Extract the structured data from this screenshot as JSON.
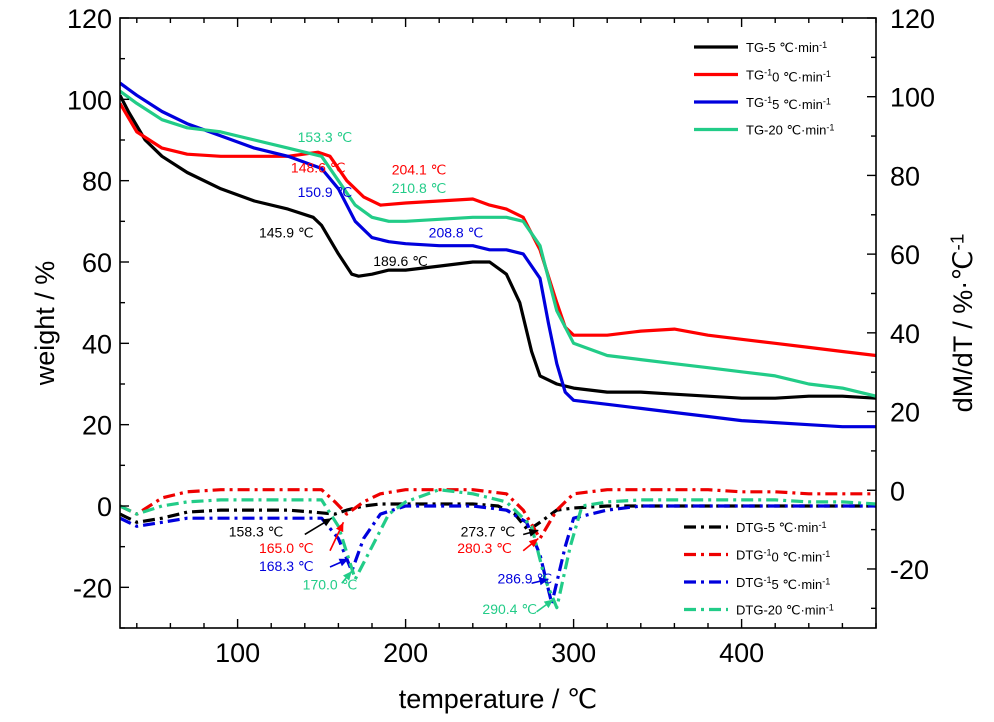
{
  "chart_data": {
    "type": "line",
    "xlabel": "temperature / ℃",
    "ylabel_left": "weight / %",
    "ylabel_right": "dM/dT / %·℃-1",
    "xlim": [
      30,
      480
    ],
    "ylim_left": [
      -30,
      120
    ],
    "ylim_right": [
      -35,
      120
    ],
    "x_ticks": [
      100,
      200,
      300,
      400
    ],
    "y_ticks_left": [
      -20,
      0,
      20,
      40,
      60,
      80,
      100,
      120
    ],
    "y_ticks_right": [
      -20,
      0,
      20,
      40,
      60,
      80,
      100,
      120
    ],
    "grid": false,
    "legend_tg_position": "top-right",
    "legend_dtg_position": "bottom-right",
    "series": [
      {
        "name": "TG-5 ℃·min-1",
        "axis": "left",
        "style": "solid",
        "color": "#000000",
        "x": [
          30,
          35,
          45,
          55,
          70,
          90,
          110,
          130,
          145,
          150,
          160,
          168,
          172,
          180,
          190,
          200,
          220,
          240,
          250,
          260,
          268,
          275,
          280,
          290,
          300,
          320,
          340,
          360,
          380,
          400,
          420,
          440,
          460,
          480
        ],
        "y": [
          101,
          97,
          90,
          86,
          82,
          78,
          75,
          73,
          71,
          69,
          62,
          57,
          56.5,
          57,
          58,
          58,
          59,
          60,
          60,
          57,
          50,
          38,
          32,
          30,
          29,
          28,
          28,
          27.5,
          27,
          26.5,
          26.5,
          27,
          27,
          26.5
        ]
      },
      {
        "name": "TG-10 ℃·min-1",
        "axis": "left",
        "style": "solid",
        "color": "#ff0000",
        "x": [
          30,
          40,
          55,
          70,
          90,
          110,
          130,
          148,
          155,
          165,
          175,
          185,
          200,
          220,
          240,
          250,
          260,
          270,
          280,
          290,
          295,
          300,
          320,
          340,
          360,
          380,
          400,
          420,
          440,
          460,
          480
        ],
        "y": [
          99,
          92,
          88,
          86.5,
          86,
          86,
          86,
          87,
          86,
          80,
          76,
          74,
          74.5,
          75,
          75.5,
          74,
          73,
          71,
          63,
          50,
          44,
          42,
          42,
          43,
          43.5,
          42,
          41,
          40,
          39,
          38,
          37
        ]
      },
      {
        "name": "TG-15 ℃·min-1",
        "axis": "left",
        "style": "solid",
        "color": "#0000dd",
        "x": [
          30,
          40,
          55,
          70,
          90,
          110,
          130,
          150,
          160,
          170,
          180,
          190,
          200,
          220,
          240,
          250,
          260,
          270,
          280,
          285,
          290,
          295,
          300,
          320,
          340,
          360,
          380,
          400,
          420,
          440,
          460,
          480
        ],
        "y": [
          104,
          101,
          97,
          94,
          91,
          88,
          86,
          83,
          78,
          70,
          66,
          65,
          64.5,
          64,
          64,
          63,
          63,
          62,
          56,
          45,
          35,
          28,
          26,
          25,
          24,
          23,
          22,
          21,
          20.5,
          20,
          19.5,
          19.5
        ]
      },
      {
        "name": "TG-20 ℃·min-1",
        "axis": "left",
        "style": "solid",
        "color": "#22cc88",
        "x": [
          30,
          40,
          55,
          70,
          90,
          110,
          130,
          150,
          160,
          170,
          180,
          190,
          200,
          220,
          240,
          250,
          260,
          270,
          280,
          290,
          300,
          320,
          340,
          360,
          380,
          400,
          420,
          440,
          460,
          480
        ],
        "y": [
          102,
          99,
          95,
          93,
          92,
          90,
          88,
          86,
          80,
          74,
          71,
          70,
          70,
          70.5,
          71,
          71,
          71,
          70,
          64,
          48,
          40,
          37,
          36,
          35,
          34,
          33,
          32,
          30,
          29,
          27
        ]
      },
      {
        "name": "DTG-5 ℃·min-1",
        "axis": "left",
        "style": "dashdot",
        "color": "#000000",
        "x": [
          30,
          40,
          55,
          70,
          90,
          110,
          130,
          145,
          158,
          165,
          175,
          185,
          200,
          220,
          240,
          255,
          265,
          273,
          280,
          290,
          300,
          320,
          340,
          360,
          380,
          400,
          420,
          440,
          460,
          480
        ],
        "y": [
          -2,
          -4,
          -3,
          -1.5,
          -1,
          -1,
          -1,
          -1.5,
          -2,
          -1,
          0,
          0.5,
          0.5,
          0.5,
          0.5,
          0,
          -2,
          -6,
          -4,
          -1,
          -0.5,
          0,
          0,
          0,
          0,
          0,
          0,
          0,
          0,
          0
        ]
      },
      {
        "name": "DTG-10 ℃·min-1",
        "axis": "left",
        "style": "dashdot",
        "color": "#ee0000",
        "x": [
          30,
          40,
          55,
          70,
          90,
          110,
          130,
          150,
          158,
          165,
          175,
          185,
          200,
          220,
          240,
          260,
          270,
          280,
          290,
          300,
          320,
          340,
          360,
          380,
          400,
          420,
          440,
          460,
          480
        ],
        "y": [
          0,
          -2,
          2,
          3.5,
          4,
          4,
          4,
          4,
          1,
          -2,
          1,
          3,
          4,
          4,
          4,
          3,
          -1,
          -8,
          -1,
          3,
          4,
          4,
          4,
          4,
          3.5,
          3.5,
          3,
          3,
          3
        ]
      },
      {
        "name": "DTG-15 ℃·min-1",
        "axis": "left",
        "style": "dashdot",
        "color": "#0000dd",
        "x": [
          30,
          40,
          55,
          70,
          90,
          110,
          130,
          150,
          160,
          168,
          175,
          185,
          200,
          220,
          240,
          260,
          272,
          280,
          287,
          295,
          300,
          320,
          340,
          360,
          380,
          400,
          420,
          440,
          460,
          480
        ],
        "y": [
          -3,
          -5,
          -4,
          -3,
          -3,
          -3,
          -3,
          -3,
          -8,
          -16,
          -8,
          -2,
          0,
          0,
          0,
          -1,
          -4,
          -12,
          -24,
          -10,
          -3,
          -1,
          0,
          0,
          0,
          0,
          0,
          0,
          0,
          0
        ]
      },
      {
        "name": "DTG-20 ℃·min-1",
        "axis": "left",
        "style": "dashdot",
        "color": "#22cc88",
        "x": [
          30,
          40,
          55,
          70,
          90,
          110,
          130,
          150,
          160,
          170,
          180,
          190,
          200,
          220,
          240,
          260,
          275,
          283,
          290,
          298,
          305,
          320,
          340,
          360,
          380,
          400,
          420,
          440,
          460,
          480
        ],
        "y": [
          0,
          -2,
          0,
          1,
          1.5,
          1.5,
          1.5,
          1.5,
          -5,
          -18,
          -10,
          -2,
          1,
          4,
          3,
          1,
          -5,
          -18,
          -25,
          -10,
          0,
          1,
          1.5,
          1.5,
          1.5,
          1.5,
          1.5,
          1,
          1,
          0.5
        ]
      }
    ],
    "annotations": [
      {
        "text": "153.3 ℃",
        "color": "#22cc88",
        "x": 152,
        "y": 89.5
      },
      {
        "text": "148.6 ℃",
        "color": "#ff0000",
        "x": 148,
        "y": 82
      },
      {
        "text": "150.9 ℃",
        "color": "#0000dd",
        "x": 152,
        "y": 76
      },
      {
        "text": "145.9 ℃",
        "color": "#000000",
        "x": 129,
        "y": 66
      },
      {
        "text": "204.1 ℃",
        "color": "#ff0000",
        "x": 208,
        "y": 81.5
      },
      {
        "text": "210.8 ℃",
        "color": "#22cc88",
        "x": 208,
        "y": 77
      },
      {
        "text": "208.8 ℃",
        "color": "#0000dd",
        "x": 230,
        "y": 66
      },
      {
        "text": "189.6 ℃",
        "color": "#000000",
        "x": 197,
        "y": 59
      },
      {
        "text": "158.3 ℃",
        "color": "#000000",
        "x": 111,
        "y": -7.5
      },
      {
        "text": "165.0 ℃",
        "color": "#ff0000",
        "x": 129,
        "y": -11.5
      },
      {
        "text": "168.3 ℃",
        "color": "#0000dd",
        "x": 129,
        "y": -16
      },
      {
        "text": "170.0 ℃",
        "color": "#22cc88",
        "x": 155,
        "y": -20.5
      },
      {
        "text": "273.7 ℃",
        "color": "#000000",
        "x": 249,
        "y": -7.5
      },
      {
        "text": "280.3 ℃",
        "color": "#ff0000",
        "x": 247,
        "y": -11.5
      },
      {
        "text": "286.9 ℃",
        "color": "#0000dd",
        "x": 271,
        "y": -19
      },
      {
        "text": "290.4 ℃",
        "color": "#22cc88",
        "x": 262,
        "y": -26.5
      }
    ],
    "arrows": [
      {
        "color": "#000000",
        "from": [
          140,
          -7
        ],
        "to": [
          156,
          -3
        ]
      },
      {
        "color": "#ff0000",
        "from": [
          155,
          -11
        ],
        "to": [
          163,
          -4
        ]
      },
      {
        "color": "#0000dd",
        "from": [
          155,
          -15
        ],
        "to": [
          166,
          -13
        ]
      },
      {
        "color": "#22cc88",
        "from": [
          162,
          -19
        ],
        "to": [
          168,
          -16
        ]
      },
      {
        "color": "#000000",
        "from": [
          270,
          -7
        ],
        "to": [
          279,
          -6
        ]
      },
      {
        "color": "#ff0000",
        "from": [
          270,
          -11
        ],
        "to": [
          279,
          -8
        ]
      },
      {
        "color": "#0000dd",
        "from": [
          275,
          -19
        ],
        "to": [
          285,
          -18
        ]
      },
      {
        "color": "#22cc88",
        "from": [
          278,
          -26
        ],
        "to": [
          288,
          -23
        ]
      }
    ]
  }
}
